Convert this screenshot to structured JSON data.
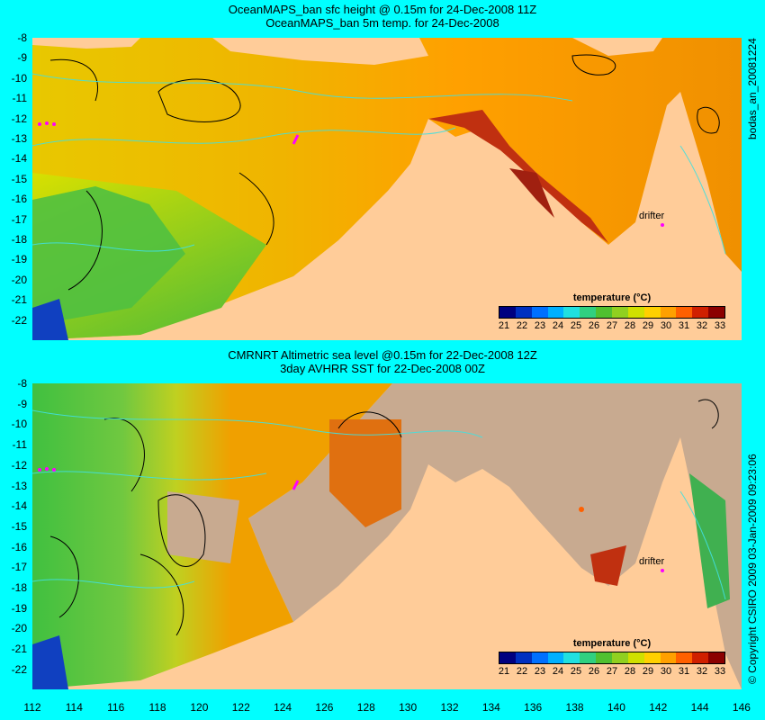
{
  "panels": [
    {
      "title1": "OceanMAPS_ban sfc height @ 0.15m for 24-Dec-2008 11Z",
      "title2": "OceanMAPS_ban 5m temp. for 24-Dec-2008",
      "side_label": "bodas_an_20081224",
      "legend_title": "temperature (°C)",
      "drifter_label": "drifter"
    },
    {
      "title1": "CMRNRT Altimetric sea level  @0.15m  for 22-Dec-2008 12Z",
      "title2": "3day AVHRR SST for 22-Dec-2008 00Z",
      "side_label": "© Copyright CSIRO 2009   03-Jan-2009 09:23:06",
      "legend_title": "temperature (°C)",
      "drifter_label": "drifter"
    }
  ],
  "axes": {
    "y_ticks": [
      "-8",
      "-9",
      "-10",
      "-11",
      "-12",
      "-13",
      "-14",
      "-15",
      "-16",
      "-17",
      "-18",
      "-19",
      "-20",
      "-21",
      "-22"
    ],
    "x_ticks": [
      "112",
      "114",
      "116",
      "118",
      "120",
      "122",
      "124",
      "126",
      "128",
      "130",
      "132",
      "134",
      "136",
      "138",
      "140",
      "142",
      "144",
      "146"
    ]
  },
  "legend": {
    "labels": [
      "21",
      "22",
      "23",
      "24",
      "25",
      "26",
      "27",
      "28",
      "29",
      "30",
      "31",
      "32",
      "33"
    ],
    "colors": [
      "#000080",
      "#0030c0",
      "#0070ff",
      "#00b0ff",
      "#20e0e0",
      "#30d080",
      "#50c030",
      "#90d020",
      "#d0e000",
      "#ffd000",
      "#ffa000",
      "#ff6000",
      "#d02000",
      "#8b0000"
    ]
  },
  "colors": {
    "background": "#00ffff",
    "land": "#ffcc99",
    "no_data": "#c8aa90",
    "contour_cyan": "#40e0e0"
  }
}
